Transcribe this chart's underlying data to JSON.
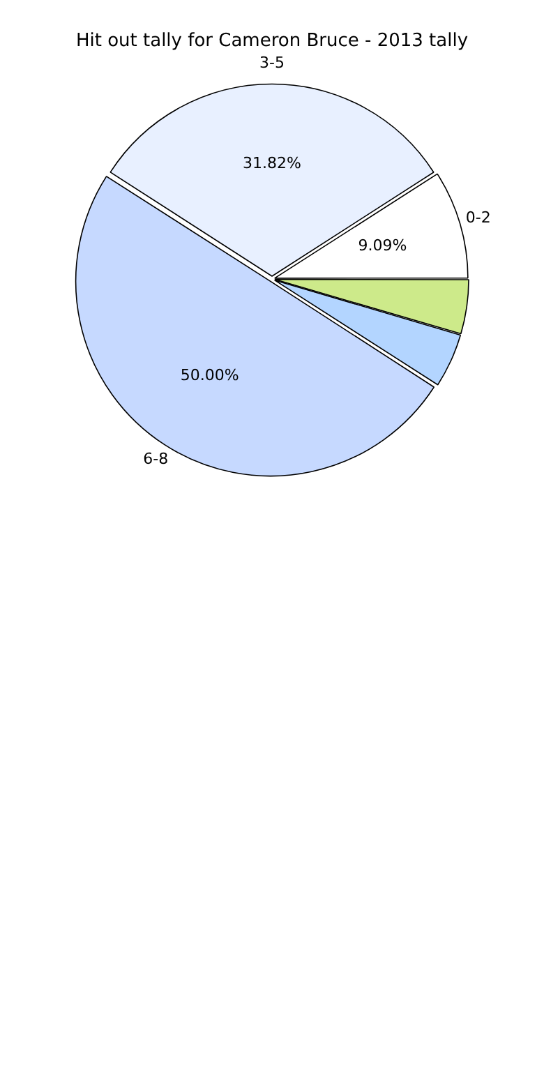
{
  "chart_data": {
    "type": "pie",
    "title": "Hit out tally for Cameron Bruce - 2013 tally",
    "categories": [
      null,
      null,
      "6-8",
      "3-5",
      "0-2"
    ],
    "values": [
      4.55,
      4.55,
      50,
      31.82,
      9.09
    ],
    "colors": [
      "#cdea8a",
      "#b3d5ff",
      "#c6d9ff",
      "#e8f0ff",
      "#ffffff"
    ],
    "value_labels": [
      null,
      null,
      "50.00%",
      "31.82%",
      "9.09%"
    ],
    "legend": false
  }
}
